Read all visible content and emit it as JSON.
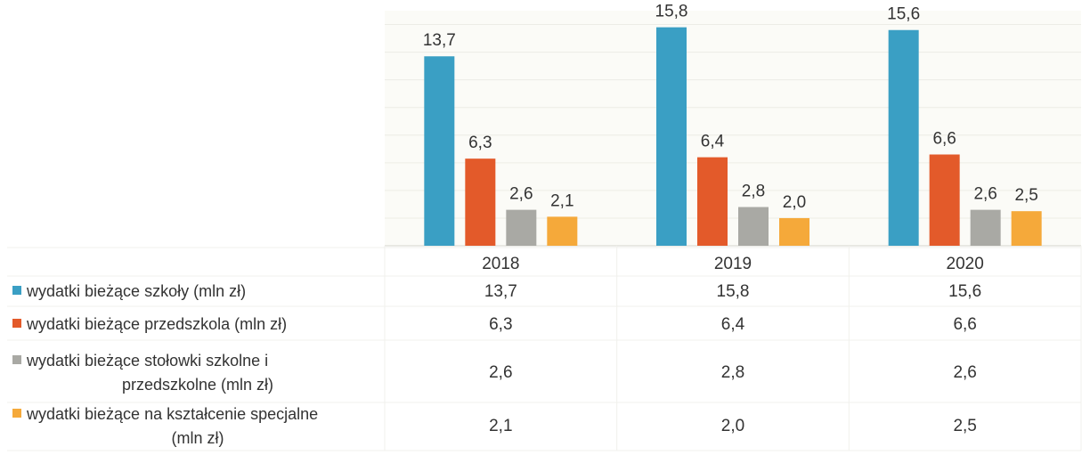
{
  "chart_data": {
    "type": "bar",
    "categories": [
      "2018",
      "2019",
      "2020"
    ],
    "series": [
      {
        "name": "wydatki bieżące szkoły  (mln zł)",
        "name_lines": [
          "wydatki bieżące szkoły  (mln zł)"
        ],
        "color": "#3a9fc4",
        "values": [
          13.7,
          15.8,
          15.6
        ],
        "labels": [
          "13,7",
          "15,8",
          "15,6"
        ]
      },
      {
        "name": "wydatki bieżące przedszkola (mln zł)",
        "name_lines": [
          "wydatki bieżące przedszkola (mln zł)"
        ],
        "color": "#e35a2a",
        "values": [
          6.3,
          6.4,
          6.6
        ],
        "labels": [
          "6,3",
          "6,4",
          "6,6"
        ]
      },
      {
        "name": "wydatki bieżące stołowki szkolne i przedszkolne (mln zł)",
        "name_lines": [
          "wydatki bieżące stołowki szkolne i",
          "przedszkolne (mln zł)"
        ],
        "color": "#a9a9a4",
        "values": [
          2.6,
          2.8,
          2.6
        ],
        "labels": [
          "2,6",
          "2,8",
          "2,6"
        ]
      },
      {
        "name": "wydatki bieżące na kształcenie specjalne (mln zł)",
        "name_lines": [
          "wydatki bieżące na kształcenie specjalne",
          "(mln zł)"
        ],
        "color": "#f5a93a",
        "values": [
          2.1,
          2.0,
          2.5
        ],
        "labels": [
          "2,1",
          "2,0",
          "2,5"
        ]
      }
    ],
    "ylim": [
      0,
      17
    ],
    "grid": true,
    "legend": "data-table"
  }
}
